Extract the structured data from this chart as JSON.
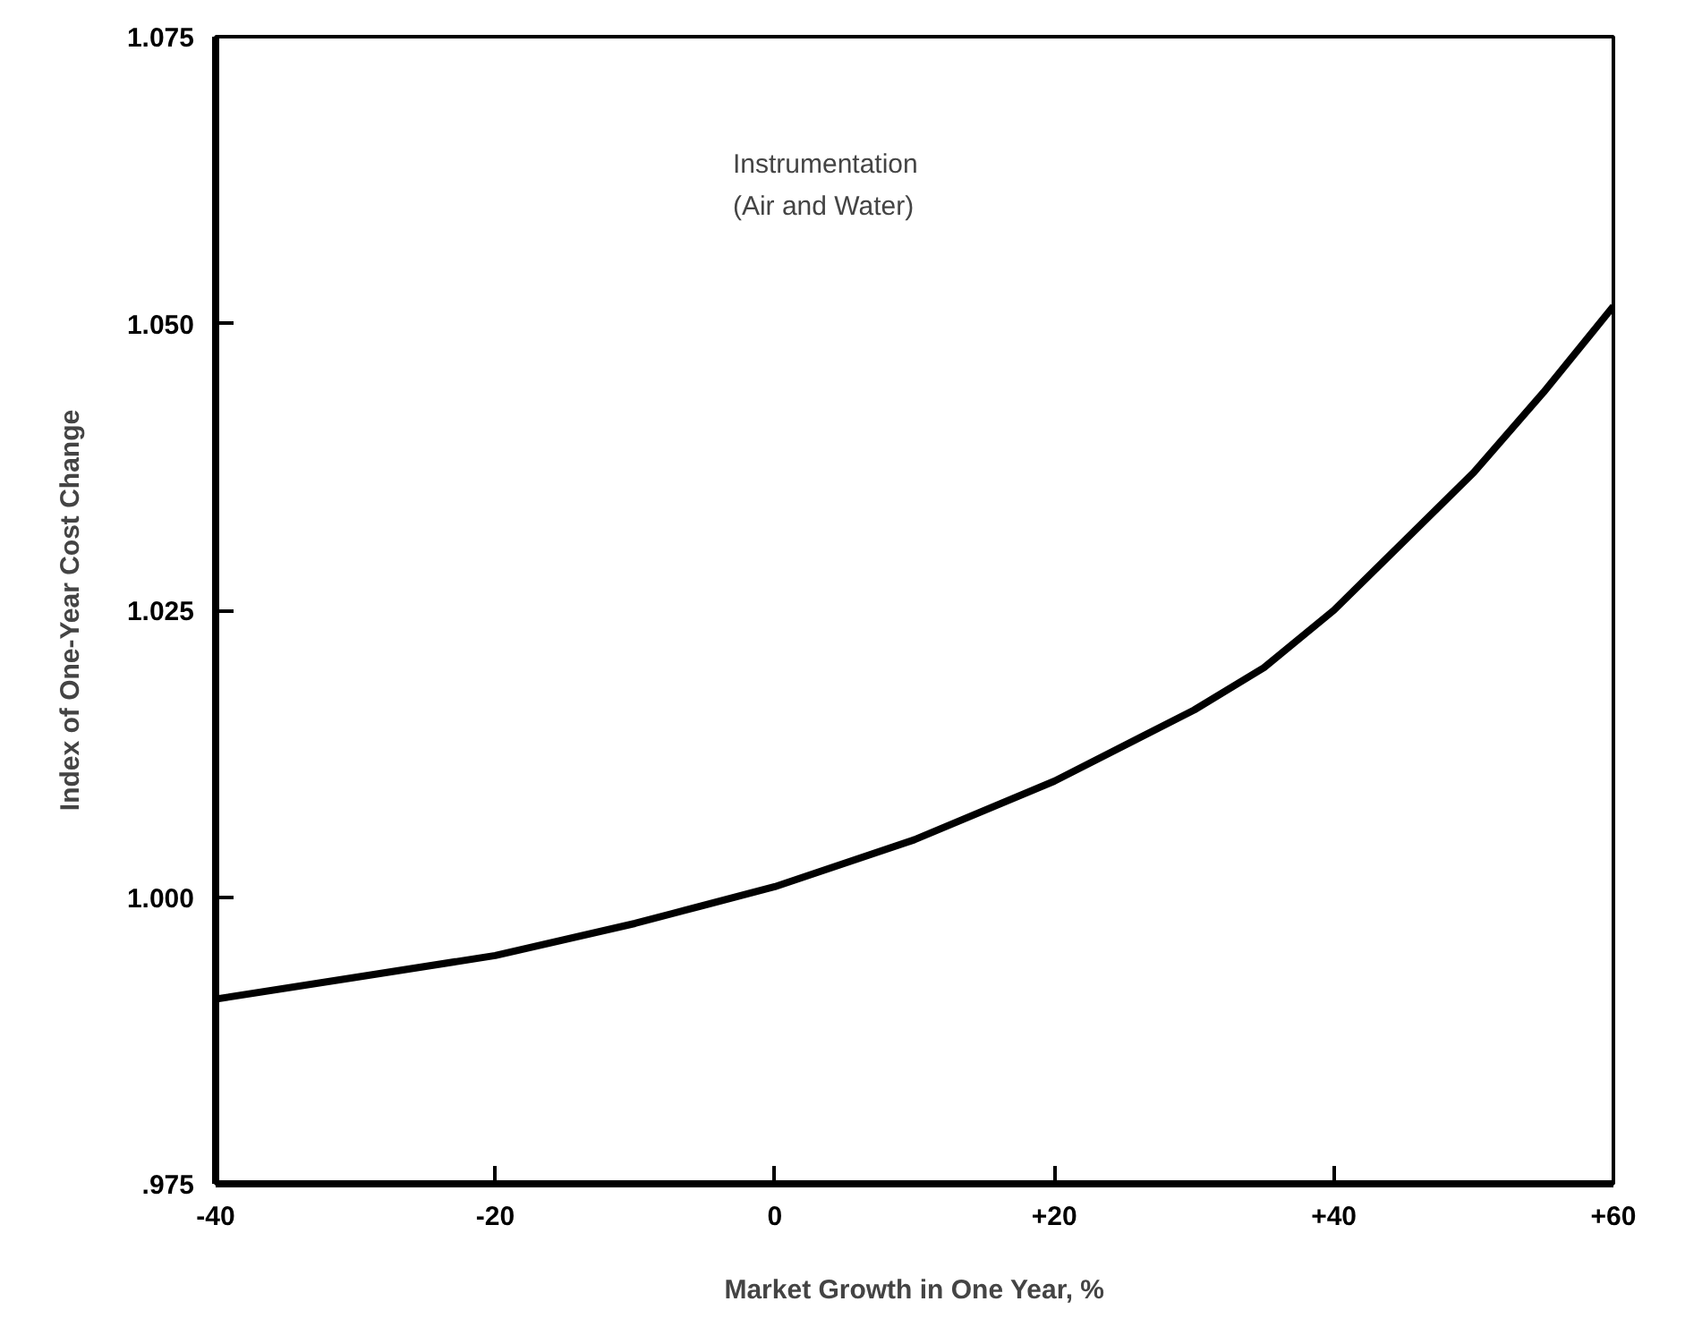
{
  "chart_data": {
    "type": "line",
    "xlabel": "Market Growth in One Year, %",
    "ylabel": "Index of One-Year Cost Change",
    "annotations": [
      "Instrumentation\n(Air and Water)"
    ],
    "x": [
      -40,
      -30,
      -20,
      -10,
      0,
      10,
      20,
      30,
      35,
      40,
      45,
      50,
      55,
      60
    ],
    "series": [
      {
        "color": "#000000",
        "values": [
          0.9911,
          0.993,
          0.9949,
          0.9977,
          1.0009,
          1.005,
          1.0101,
          1.0163,
          1.02,
          1.025,
          1.031,
          1.037,
          1.044,
          1.0515
        ]
      }
    ],
    "xlim": [
      -40,
      60
    ],
    "ylim": [
      0.975,
      1.075
    ],
    "xticks": [
      {
        "value": -40,
        "label": "-40"
      },
      {
        "value": -20,
        "label": "-20"
      },
      {
        "value": 0,
        "label": "0"
      },
      {
        "value": 20,
        "label": "+20"
      },
      {
        "value": 40,
        "label": "+40"
      },
      {
        "value": 60,
        "label": "+60"
      }
    ],
    "yticks": [
      {
        "value": 0.975,
        "label": ".975"
      },
      {
        "value": 1.0,
        "label": "1.000"
      },
      {
        "value": 1.025,
        "label": "1.025"
      },
      {
        "value": 1.05,
        "label": "1.050"
      },
      {
        "value": 1.075,
        "label": "1.075"
      }
    ],
    "grid": false,
    "marker": "none",
    "line_style": "solid"
  }
}
